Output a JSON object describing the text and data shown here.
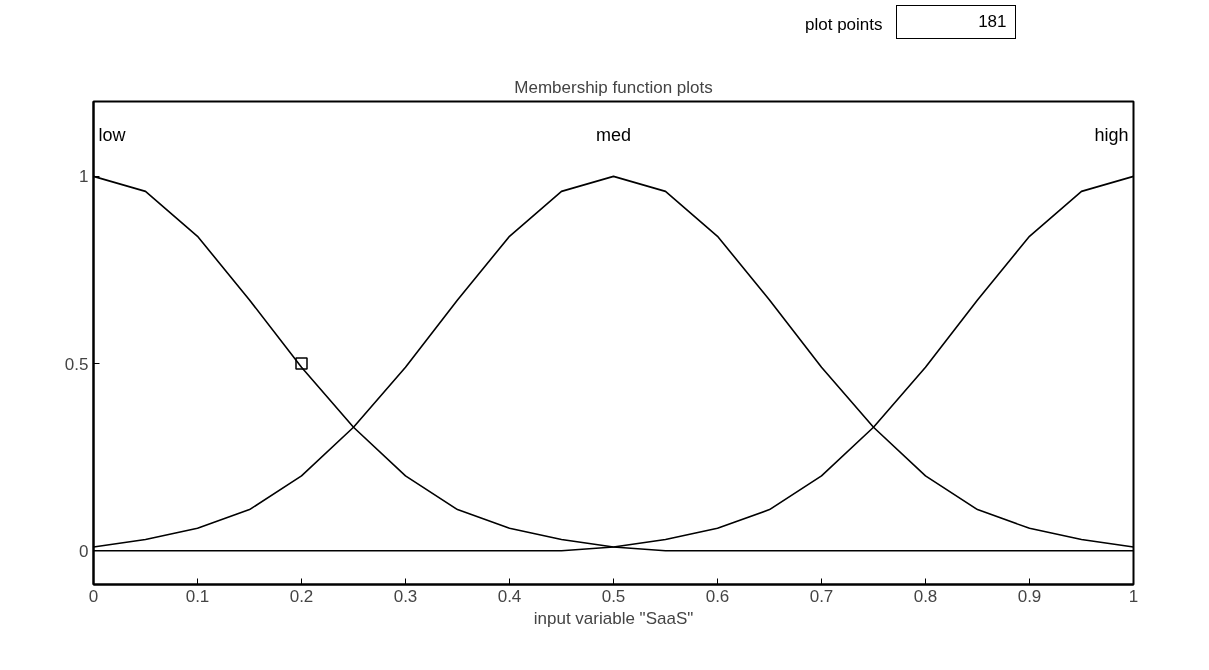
{
  "chart_data": {
    "type": "line",
    "title": "Membership function plots",
    "xlabel": "input variable \"SaaS\"",
    "annotations": [
      "plot points",
      "181"
    ],
    "x": [
      0,
      0.05,
      0.1,
      0.15,
      0.2,
      0.25,
      0.3,
      0.35,
      0.4,
      0.45,
      0.5,
      0.55,
      0.6,
      0.65,
      0.7,
      0.75,
      0.8,
      0.85,
      0.9,
      0.95,
      1
    ],
    "series": [
      {
        "name": "low",
        "color": "#000000",
        "values": [
          1,
          0.96,
          0.84,
          0.67,
          0.49,
          0.33,
          0.2,
          0.11,
          0.06,
          0.03,
          0.01,
          0,
          0,
          0,
          0,
          0,
          0,
          0,
          0,
          0,
          0
        ]
      },
      {
        "name": "med",
        "color": "#000000",
        "values": [
          0.01,
          0.03,
          0.06,
          0.11,
          0.2,
          0.33,
          0.49,
          0.67,
          0.84,
          0.96,
          1,
          0.96,
          0.84,
          0.67,
          0.49,
          0.33,
          0.2,
          0.11,
          0.06,
          0.03,
          0.01
        ]
      },
      {
        "name": "high",
        "color": "#000000",
        "values": [
          0,
          0,
          0,
          0,
          0,
          0,
          0,
          0,
          0,
          0,
          0.01,
          0.03,
          0.06,
          0.11,
          0.2,
          0.33,
          0.49,
          0.67,
          0.84,
          0.96,
          1
        ]
      },
      {
        "type": "scatter",
        "marker": "square",
        "color": "#000000",
        "x": [
          0.2
        ],
        "values": [
          0.5
        ]
      }
    ],
    "xlim": [
      0,
      1
    ],
    "ylim": [
      -0.09,
      1.2
    ],
    "xticks": [
      0,
      0.1,
      0.2,
      0.3,
      0.4,
      0.5,
      0.6,
      0.7,
      0.8,
      0.9,
      1
    ],
    "yticks": [
      0,
      0.5,
      1
    ],
    "grid": false,
    "marker": "none",
    "line_style": "solid"
  }
}
